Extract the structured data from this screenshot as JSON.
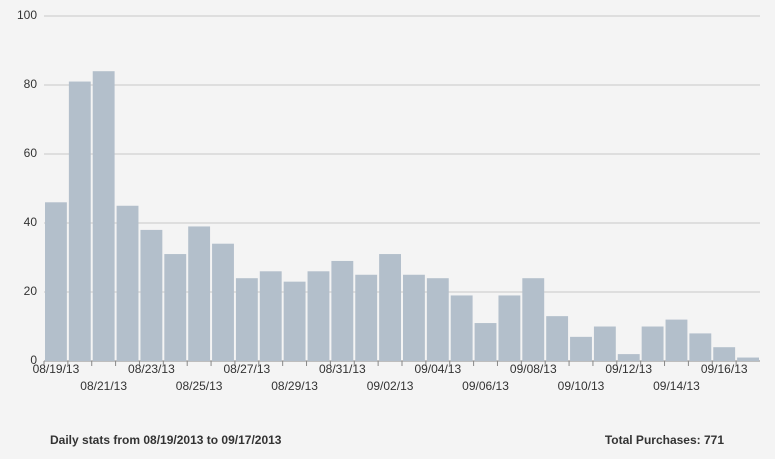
{
  "chart_data": {
    "type": "bar",
    "categories": [
      "08/19/13",
      null,
      "08/21/13",
      null,
      "08/23/13",
      null,
      "08/25/13",
      null,
      "08/27/13",
      null,
      "08/29/13",
      null,
      "08/31/13",
      null,
      "09/02/13",
      null,
      "09/04/13",
      null,
      "09/06/13",
      null,
      "09/08/13",
      null,
      "09/10/13",
      null,
      "09/12/13",
      null,
      "09/14/13",
      null,
      "09/16/13",
      null
    ],
    "values": [
      46,
      81,
      84,
      45,
      38,
      31,
      39,
      34,
      24,
      26,
      23,
      26,
      29,
      25,
      31,
      25,
      24,
      19,
      11,
      19,
      24,
      13,
      7,
      10,
      2,
      10,
      12,
      8,
      4,
      1
    ],
    "color": "#b3bfcb",
    "ylim": [
      0,
      100
    ],
    "yticks": [
      0,
      20,
      40,
      60,
      80,
      100
    ],
    "grid": true
  },
  "footer": {
    "left": "Daily stats from 08/19/2013 to 09/17/2013",
    "right": "Total Purchases: 771"
  }
}
